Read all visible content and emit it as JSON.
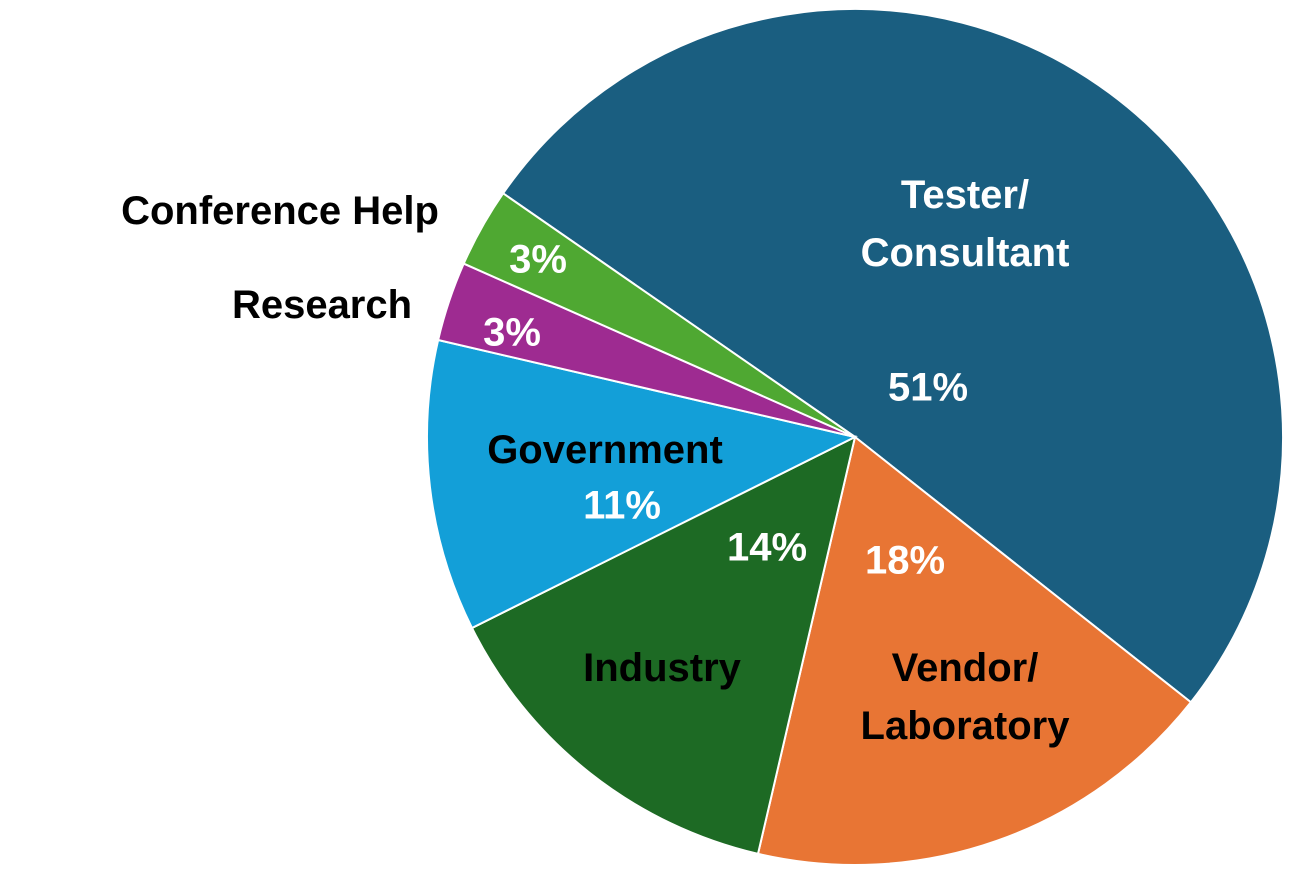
{
  "chart_data": {
    "type": "pie",
    "categories": [
      "Tester/\nConsultant",
      "Vendor/\nLaboratory",
      "Industry",
      "Government",
      "Research",
      "Conference Help"
    ],
    "values": [
      51,
      18,
      14,
      11,
      3,
      3
    ],
    "value_labels": [
      "51%",
      "18%",
      "14%",
      "11%",
      "3%",
      "3%"
    ],
    "colors": [
      "#1a5e80",
      "#e87534",
      "#1d6a24",
      "#139fd8",
      "#9e2b91",
      "#4fa832"
    ]
  }
}
